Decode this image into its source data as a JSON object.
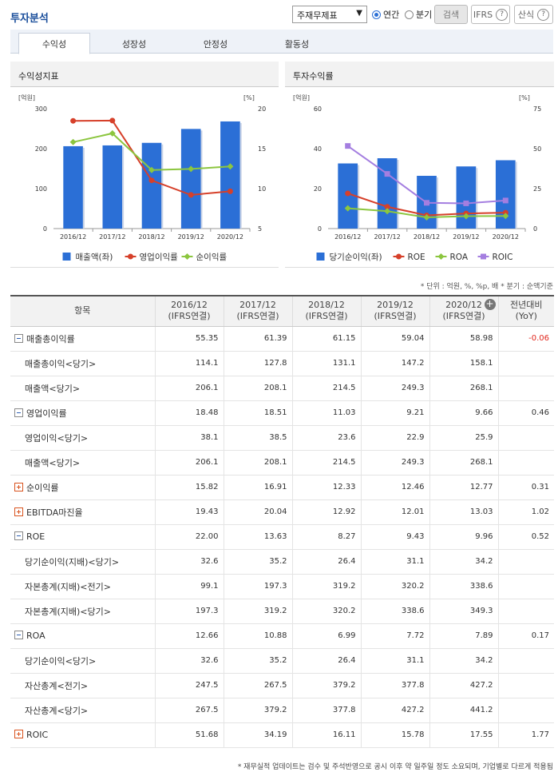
{
  "header": {
    "title": "투자분석",
    "select_value": "주재무제표",
    "radio_annual": "연간",
    "radio_quarter": "분기",
    "search_label": "검색",
    "ifrs_label": "IFRS",
    "formula_label": "산식",
    "help_glyph": "?"
  },
  "tabs": [
    "수익성",
    "성장성",
    "안정성",
    "활동성"
  ],
  "panels": {
    "left_title": "수익성지표",
    "right_title": "투자수익률"
  },
  "chart_data": [
    {
      "type": "bar",
      "title": "수익성지표",
      "categories": [
        "2016/12",
        "2017/12",
        "2018/12",
        "2019/12",
        "2020/12"
      ],
      "left_unit": "[억원]",
      "right_unit": "[%]",
      "left_ticks": [
        "300",
        "200",
        "100",
        "0"
      ],
      "right_ticks": [
        "20",
        "15",
        "10",
        "5"
      ],
      "ylim_left": [
        0,
        300
      ],
      "ylim_right": [
        5,
        20
      ],
      "series": [
        {
          "name": "매출액(좌)",
          "kind": "bar",
          "axis": "left",
          "color": "#2b6fd6",
          "values": [
            206.1,
            208.1,
            214.5,
            249.3,
            268.1
          ]
        },
        {
          "name": "영업이익률",
          "kind": "line",
          "axis": "right",
          "color": "#d6402a",
          "marker": "circle",
          "values": [
            18.48,
            18.51,
            11.03,
            9.21,
            9.66
          ]
        },
        {
          "name": "순이익률",
          "kind": "line",
          "axis": "right",
          "color": "#8cc63f",
          "marker": "diamond",
          "values": [
            15.82,
            16.91,
            12.33,
            12.46,
            12.77
          ]
        }
      ]
    },
    {
      "type": "bar",
      "title": "투자수익률",
      "categories": [
        "2016/12",
        "2017/12",
        "2018/12",
        "2019/12",
        "2020/12"
      ],
      "left_unit": "[억원]",
      "right_unit": "[%]",
      "left_ticks": [
        "60",
        "40",
        "20",
        "0"
      ],
      "right_ticks": [
        "75",
        "50",
        "25",
        "0"
      ],
      "ylim_left": [
        0,
        60
      ],
      "ylim_right": [
        0,
        75
      ],
      "series": [
        {
          "name": "당기순이익(좌)",
          "kind": "bar",
          "axis": "left",
          "color": "#2b6fd6",
          "values": [
            32.6,
            35.2,
            26.4,
            31.1,
            34.2
          ]
        },
        {
          "name": "ROE",
          "kind": "line",
          "axis": "right",
          "color": "#d6402a",
          "marker": "circle",
          "values": [
            22.0,
            13.63,
            8.27,
            9.43,
            9.96
          ]
        },
        {
          "name": "ROA",
          "kind": "line",
          "axis": "right",
          "color": "#8cc63f",
          "marker": "diamond",
          "values": [
            12.66,
            10.88,
            6.99,
            7.72,
            7.89
          ]
        },
        {
          "name": "ROIC",
          "kind": "line",
          "axis": "right",
          "color": "#a47ee0",
          "marker": "square",
          "values": [
            51.68,
            34.19,
            16.11,
            15.78,
            17.55
          ]
        }
      ]
    }
  ],
  "unit_note": "* 단위 : 억원, %, %p, 배    * 분기 : 순액기준",
  "table": {
    "headers": [
      {
        "l1": "항목",
        "l2": ""
      },
      {
        "l1": "2016/12",
        "l2": "(IFRS연결)"
      },
      {
        "l1": "2017/12",
        "l2": "(IFRS연결)"
      },
      {
        "l1": "2018/12",
        "l2": "(IFRS연결)"
      },
      {
        "l1": "2019/12",
        "l2": "(IFRS연결)"
      },
      {
        "l1": "2020/12",
        "l2": "(IFRS연결)"
      },
      {
        "l1": "전년대비",
        "l2": "(YoY)"
      }
    ],
    "add_col_glyph": "+",
    "rows": [
      {
        "label": "매출총이익률",
        "toggle": "minus",
        "values": [
          "55.35",
          "61.39",
          "61.15",
          "59.04",
          "58.98",
          "-0.06"
        ],
        "negative_yoy": true
      },
      {
        "label": "매출총이익<당기>",
        "toggle": "",
        "values": [
          "114.1",
          "127.8",
          "131.1",
          "147.2",
          "158.1",
          ""
        ]
      },
      {
        "label": "매출액<당기>",
        "toggle": "",
        "values": [
          "206.1",
          "208.1",
          "214.5",
          "249.3",
          "268.1",
          ""
        ]
      },
      {
        "label": "영업이익률",
        "toggle": "minus",
        "values": [
          "18.48",
          "18.51",
          "11.03",
          "9.21",
          "9.66",
          "0.46"
        ]
      },
      {
        "label": "영업이익<당기>",
        "toggle": "",
        "values": [
          "38.1",
          "38.5",
          "23.6",
          "22.9",
          "25.9",
          ""
        ]
      },
      {
        "label": "매출액<당기>",
        "toggle": "",
        "values": [
          "206.1",
          "208.1",
          "214.5",
          "249.3",
          "268.1",
          ""
        ]
      },
      {
        "label": "순이익률",
        "toggle": "plus",
        "values": [
          "15.82",
          "16.91",
          "12.33",
          "12.46",
          "12.77",
          "0.31"
        ]
      },
      {
        "label": "EBITDA마진율",
        "toggle": "plus",
        "values": [
          "19.43",
          "20.04",
          "12.92",
          "12.01",
          "13.03",
          "1.02"
        ]
      },
      {
        "label": "ROE",
        "toggle": "minus",
        "values": [
          "22.00",
          "13.63",
          "8.27",
          "9.43",
          "9.96",
          "0.52"
        ]
      },
      {
        "label": "당기순이익(지배)<당기>",
        "toggle": "",
        "values": [
          "32.6",
          "35.2",
          "26.4",
          "31.1",
          "34.2",
          ""
        ]
      },
      {
        "label": "자본총계(지배)<전기>",
        "toggle": "",
        "values": [
          "99.1",
          "197.3",
          "319.2",
          "320.2",
          "338.6",
          ""
        ]
      },
      {
        "label": "자본총계(지배)<당기>",
        "toggle": "",
        "values": [
          "197.3",
          "319.2",
          "320.2",
          "338.6",
          "349.3",
          ""
        ]
      },
      {
        "label": "ROA",
        "toggle": "minus",
        "values": [
          "12.66",
          "10.88",
          "6.99",
          "7.72",
          "7.89",
          "0.17"
        ]
      },
      {
        "label": "당기순이익<당기>",
        "toggle": "",
        "values": [
          "32.6",
          "35.2",
          "26.4",
          "31.1",
          "34.2",
          ""
        ]
      },
      {
        "label": "자산총계<전기>",
        "toggle": "",
        "values": [
          "247.5",
          "267.5",
          "379.2",
          "377.8",
          "427.2",
          ""
        ]
      },
      {
        "label": "자산총계<당기>",
        "toggle": "",
        "values": [
          "267.5",
          "379.2",
          "377.8",
          "427.2",
          "441.2",
          ""
        ]
      },
      {
        "label": "ROIC",
        "toggle": "plus",
        "values": [
          "51.68",
          "34.19",
          "16.11",
          "15.78",
          "17.55",
          "1.77"
        ]
      }
    ]
  },
  "footnote": "* 재무실적 업데이트는 검수 및 주석반영으로 공시 이후 약 일주일 정도 소요되며, 기업별로 다르게 적용됨"
}
